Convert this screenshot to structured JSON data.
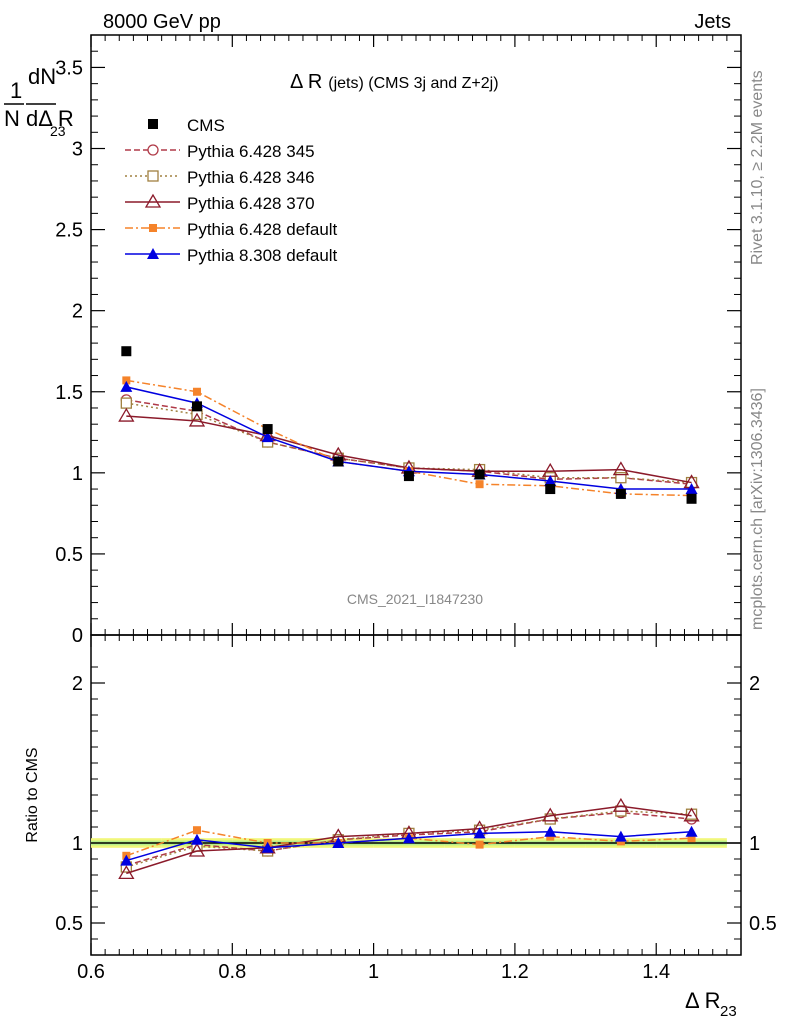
{
  "header": {
    "left": "8000 GeV pp",
    "right": "Jets"
  },
  "side": {
    "rivet": "Rivet 3.1.10, ≥ 2.2M events",
    "mcplots": "mcplots.cern.ch [arXiv:1306.3436]"
  },
  "chart_data": {
    "type": "scatter",
    "title": "Δ R (jets) (CMS 3j and Z+2j)",
    "title_main": "Δ R",
    "title_sub": "(jets) (CMS 3j and Z+2j)",
    "watermark": "CMS_2021_I1847230",
    "xlabel": "Δ R",
    "xlabel_sub": "23",
    "ylabel_frac_num": "1",
    "ylabel_frac_den": "N",
    "ylabel_d_num": "dN",
    "ylabel_d_den": "dΔ R",
    "ylabel_sub": "23",
    "ratio_ylabel": "Ratio to CMS",
    "xlim": [
      0.6,
      1.52
    ],
    "ylim": [
      0,
      3.7
    ],
    "ratio_ylim": [
      0.3,
      2.3
    ],
    "x_ticks": [
      "0.6",
      "0.8",
      "1",
      "1.2",
      "1.4"
    ],
    "y_ticks": [
      "0",
      "0.5",
      "1",
      "1.5",
      "2",
      "2.5",
      "3",
      "3.5"
    ],
    "ratio_y_ticks": [
      "0.5",
      "1",
      "2"
    ],
    "x": [
      0.65,
      0.75,
      0.85,
      0.95,
      1.05,
      1.15,
      1.25,
      1.35,
      1.45
    ],
    "data": {
      "name": "CMS",
      "values": [
        1.75,
        1.41,
        1.27,
        1.07,
        0.98,
        0.99,
        0.9,
        0.87,
        0.84
      ]
    },
    "series": [
      {
        "name": "Pythia 6.428 345",
        "color": "#b03a48",
        "dash": "6,3",
        "marker": "circle-open",
        "values": [
          1.45,
          1.38,
          1.19,
          1.09,
          1.03,
          1.01,
          0.96,
          0.97,
          0.93
        ],
        "ratio": [
          0.86,
          0.99,
          0.95,
          1.02,
          1.05,
          1.07,
          1.15,
          1.19,
          1.15
        ]
      },
      {
        "name": "Pythia 6.428 346",
        "color": "#a08040",
        "dash": "2,3",
        "marker": "square-open",
        "values": [
          1.43,
          1.36,
          1.19,
          1.09,
          1.03,
          1.02,
          0.97,
          0.97,
          0.94
        ],
        "ratio": [
          0.85,
          0.98,
          0.95,
          1.02,
          1.06,
          1.08,
          1.15,
          1.2,
          1.18
        ]
      },
      {
        "name": "Pythia 6.428 370",
        "color": "#8b1a2a",
        "dash": "",
        "marker": "triangle-open",
        "values": [
          1.35,
          1.32,
          1.23,
          1.11,
          1.03,
          1.01,
          1.01,
          1.02,
          0.94
        ],
        "ratio": [
          0.81,
          0.95,
          0.97,
          1.04,
          1.06,
          1.09,
          1.17,
          1.23,
          1.17
        ]
      },
      {
        "name": "Pythia 6.428 default",
        "color": "#f5832a",
        "dash": "8,3,2,3",
        "marker": "square-filled",
        "values": [
          1.57,
          1.5,
          1.27,
          1.07,
          1.01,
          0.93,
          0.92,
          0.87,
          0.86
        ],
        "ratio": [
          0.92,
          1.08,
          1.0,
          1.0,
          1.03,
          0.99,
          1.04,
          1.01,
          1.03
        ]
      },
      {
        "name": "Pythia 8.308 default",
        "color": "#0000e0",
        "dash": "",
        "marker": "triangle-filled",
        "values": [
          1.53,
          1.43,
          1.22,
          1.07,
          1.01,
          0.99,
          0.95,
          0.9,
          0.9
        ],
        "ratio": [
          0.89,
          1.02,
          0.97,
          1.0,
          1.03,
          1.06,
          1.07,
          1.04,
          1.07
        ]
      }
    ]
  }
}
